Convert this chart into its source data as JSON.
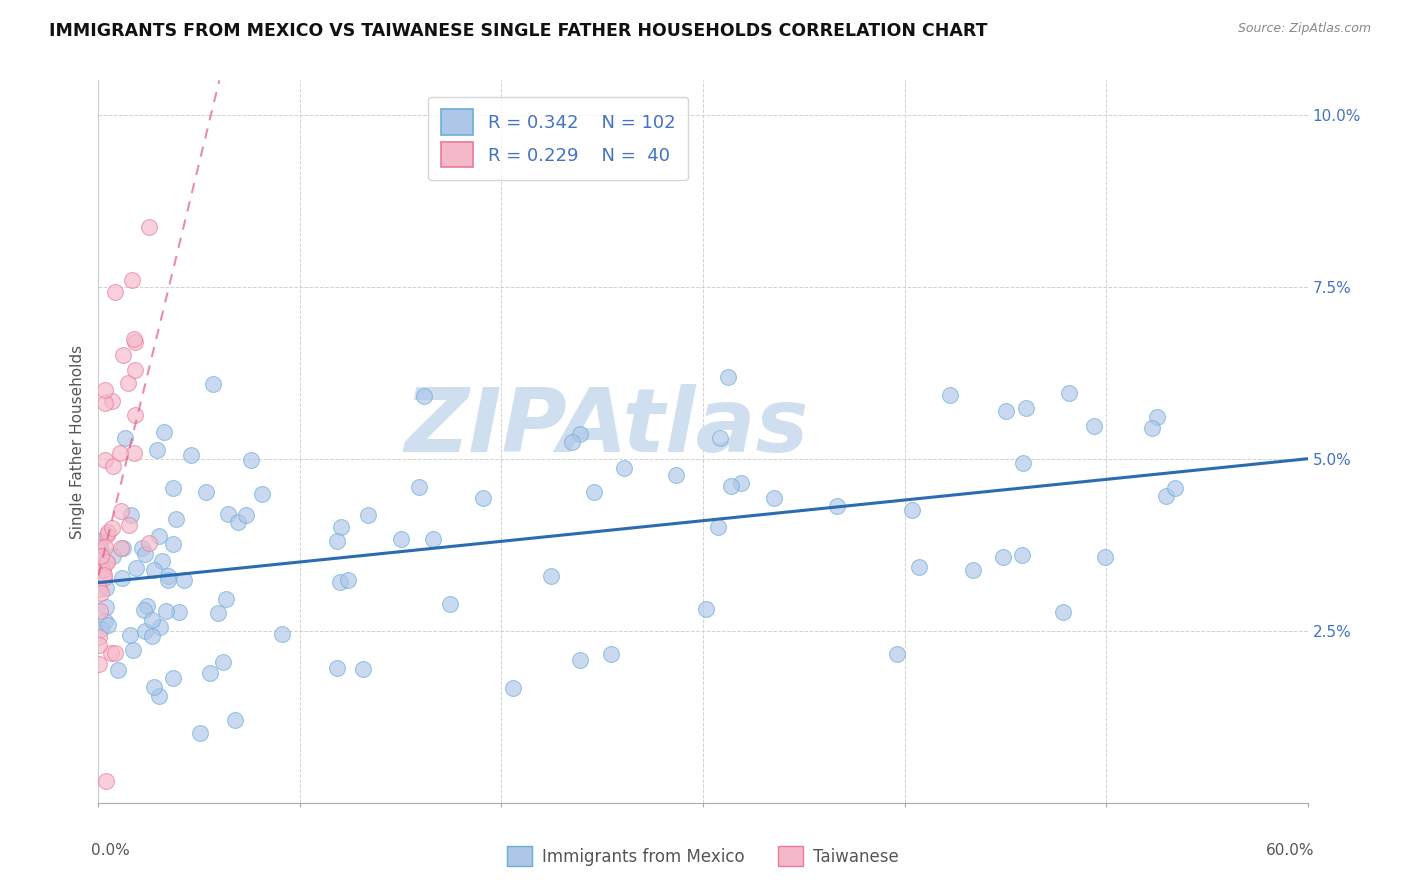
{
  "title": "IMMIGRANTS FROM MEXICO VS TAIWANESE SINGLE FATHER HOUSEHOLDS CORRELATION CHART",
  "source": "Source: ZipAtlas.com",
  "xlabel_label": "Immigrants from Mexico",
  "xlabel_label2": "Taiwanese",
  "ylabel": "Single Father Households",
  "r_mexico": 0.342,
  "n_mexico": 102,
  "r_taiwanese": 0.229,
  "n_taiwanese": 40,
  "xlim": [
    0.0,
    0.6
  ],
  "ylim": [
    0.0,
    0.105
  ],
  "ytick_positions": [
    0.0,
    0.025,
    0.05,
    0.075,
    0.1
  ],
  "ytick_labels": [
    "",
    "2.5%",
    "5.0%",
    "7.5%",
    "10.0%"
  ],
  "mexico_color": "#aec6e8",
  "mexico_edge": "#6aaed6",
  "taiwanese_color": "#f5b8c8",
  "taiwanese_edge": "#e87a9a",
  "trendline_mexico_color": "#2b6cb0",
  "trendline_taiwanese_color": "#e05c8a",
  "watermark_text": "ZIPAtlas",
  "watermark_color": "#d0dff0",
  "background_color": "#ffffff",
  "legend_text_color": "#4472c4",
  "title_fontsize": 12.5,
  "axis_label_fontsize": 11,
  "scatter_size": 130,
  "scatter_alpha": 0.65,
  "trendline_mexico_start_x": 0.0,
  "trendline_mexico_start_y": 0.032,
  "trendline_mexico_end_x": 0.6,
  "trendline_mexico_end_y": 0.05,
  "trendline_tai_x0": 0.0,
  "trendline_tai_y0": 0.033,
  "trendline_tai_x1": 0.06,
  "trendline_tai_y1": 0.105
}
